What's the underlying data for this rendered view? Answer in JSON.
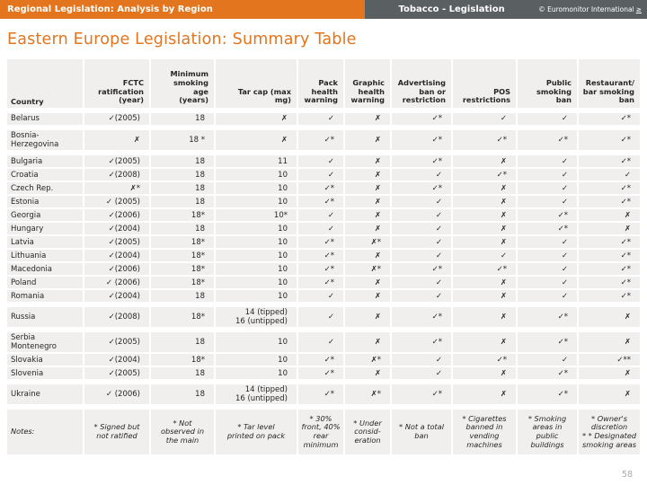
{
  "top_bar": {
    "left_title": "Regional Legislation: Analysis by Region",
    "section_title": "Tobacco - Legislation",
    "brand": "© Euromonitor International",
    "brand_link": "≥"
  },
  "page_title": "Eastern Europe Legislation: Summary Table",
  "page_number": "58",
  "colors": {
    "accent_orange": "#E2751D",
    "bar_gray": "#5A6062",
    "cell_bg": "#F0EFED",
    "page_number_gray": "#A9A9A9"
  },
  "table": {
    "columns": [
      "Country",
      "FCTC\nratification\n(year)",
      "Minimum\nsmoking\nage\n(years)",
      "Tar cap (max\nmg)",
      "Pack\nhealth\nwarning",
      "Graphic\nhealth\nwarning",
      "Advertising\nban or\nrestriction",
      "POS\nrestrictions",
      "Public\nsmoking\nban",
      "Restaurant/\nbar smoking\nban"
    ],
    "rows": [
      {
        "gap": true,
        "cells": [
          "Belarus",
          "✓(2005)",
          "18",
          "✗",
          "✓",
          "✗",
          "✓*",
          "✓",
          "✓",
          "✓*"
        ]
      },
      {
        "gap": true,
        "cells": [
          "Bosnia-Herzegovina",
          "✗",
          "18 *",
          "✗",
          "✓*",
          "✗",
          "✓*",
          "✓*",
          "✓*",
          "✓*"
        ]
      },
      {
        "gap": false,
        "cells": [
          "Bulgaria",
          "✓(2005)",
          "18",
          "11",
          "✓",
          "✗",
          "✓*",
          "✗",
          "✓",
          "✓*"
        ]
      },
      {
        "gap": false,
        "cells": [
          "Croatia",
          "✓(2008)",
          "18",
          "10",
          "✓",
          "✗",
          "✓",
          "✓*",
          "✓",
          "✓"
        ]
      },
      {
        "gap": false,
        "cells": [
          "Czech Rep.",
          "✗*",
          "18",
          "10",
          "✓*",
          "✗",
          "✓*",
          "✗",
          "✓",
          "✓*"
        ]
      },
      {
        "gap": false,
        "cells": [
          "Estonia",
          "✓ (2005)",
          "18",
          "10",
          "✓*",
          "✗",
          "✓",
          "✗",
          "✓",
          "✓*"
        ]
      },
      {
        "gap": false,
        "cells": [
          "Georgia",
          "✓(2006)",
          "18*",
          "10*",
          "✓",
          "✗",
          "✓",
          "✗",
          "✓*",
          "✗"
        ]
      },
      {
        "gap": false,
        "cells": [
          "Hungary",
          "✓(2004)",
          "18",
          "10",
          "✓",
          "✗",
          "✓",
          "✗",
          "✓*",
          "✗"
        ]
      },
      {
        "gap": false,
        "cells": [
          "Latvia",
          "✓(2005)",
          "18*",
          "10",
          "✓*",
          "✗*",
          "✓",
          "✗",
          "✓",
          "✓*"
        ]
      },
      {
        "gap": false,
        "cells": [
          "Lithuania",
          "✓(2004)",
          "18*",
          "10",
          "✓*",
          "✗",
          "✓",
          "✓",
          "✓",
          "✓*"
        ]
      },
      {
        "gap": false,
        "cells": [
          "Macedonia",
          "✓(2006)",
          "18*",
          "10",
          "✓*",
          "✗*",
          "✓*",
          "✓*",
          "✓",
          "✓*"
        ]
      },
      {
        "gap": false,
        "cells": [
          "Poland",
          "✓ (2006)",
          "18*",
          "10",
          "✓*",
          "✗",
          "✓",
          "✗",
          "✓",
          "✓*"
        ]
      },
      {
        "gap": true,
        "cells": [
          "Romania",
          "✓(2004)",
          "18",
          "10",
          "✓",
          "✗",
          "✓",
          "✗",
          "✓",
          "✓*"
        ]
      },
      {
        "gap": true,
        "cells": [
          "Russia",
          "✓(2008)",
          "18*",
          "14 (tipped)\n16 (untipped)",
          "✓",
          "✗",
          "✓*",
          "✗",
          "✓*",
          "✗"
        ]
      },
      {
        "gap": false,
        "cells": [
          "Serbia Montenegro",
          "✓(2005)",
          "18",
          "10",
          "✓",
          "✗",
          "✓*",
          "✗",
          "✓*",
          "✗"
        ]
      },
      {
        "gap": false,
        "cells": [
          "Slovakia",
          "✓(2004)",
          "18*",
          "10",
          "✓*",
          "✗*",
          "✓",
          "✓*",
          "✓",
          "✓**"
        ]
      },
      {
        "gap": true,
        "cells": [
          "Slovenia",
          "✓(2005)",
          "18",
          "10",
          "✓*",
          "✗",
          "✓",
          "✗",
          "✓*",
          "✗"
        ]
      },
      {
        "gap": true,
        "cells": [
          "Ukraine",
          "✓ (2006)",
          "18",
          "14 (tipped)\n16 (untipped)",
          "✓*",
          "✗*",
          "✓*",
          "✗",
          "✓*",
          "✗"
        ]
      }
    ],
    "notes_row": {
      "cells": [
        "Notes:",
        "* Signed but\nnot ratified",
        "* Not\nobserved in\nthe main",
        "* Tar level\nprinted on pack",
        "* 30%\nfront, 40%\nrear\nminimum",
        "* Under\nconsid-\neration",
        "* Not a total\nban",
        "* Cigarettes\nbanned in\nvending\nmachines",
        "* Smoking\nareas in\npublic\nbuildings",
        "* Owner's\ndiscretion\n* * Designated\nsmoking areas"
      ]
    }
  }
}
